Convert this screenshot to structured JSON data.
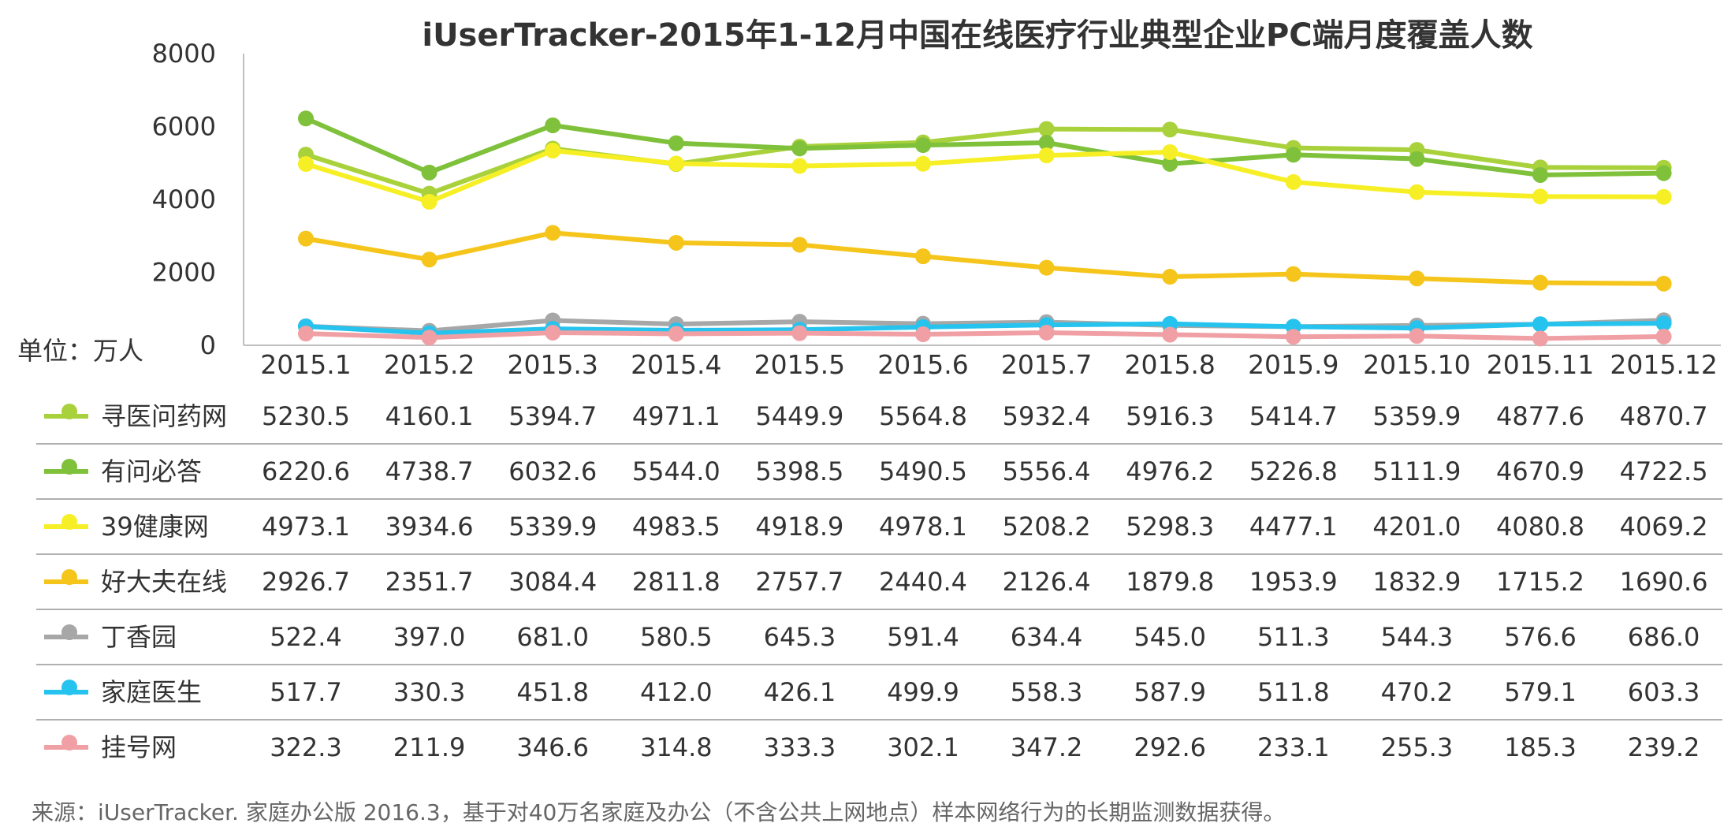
{
  "chart_data": {
    "type": "line",
    "title": "iUserTracker-2015年1-12月中国在线医疗行业典型企业PC端月度覆盖人数",
    "unit_label": "单位：万人",
    "y_ticks": [
      "0",
      "2000",
      "4000",
      "6000",
      "8000"
    ],
    "ylim": [
      0,
      8000
    ],
    "grid": false,
    "legend": "table-left",
    "categories": [
      "2015.1",
      "2015.2",
      "2015.3",
      "2015.4",
      "2015.5",
      "2015.6",
      "2015.7",
      "2015.8",
      "2015.9",
      "2015.10",
      "2015.11",
      "2015.12"
    ],
    "series": [
      {
        "name": "寻医问药网",
        "color": "#a9d13c",
        "values": [
          5230.5,
          4160.1,
          5394.7,
          4971.1,
          5449.9,
          5564.8,
          5932.4,
          5916.3,
          5414.7,
          5359.9,
          4877.6,
          4870.7
        ],
        "labels": [
          "5230.5",
          "4160.1",
          "5394.7",
          "4971.1",
          "5449.9",
          "5564.8",
          "5932.4",
          "5916.3",
          "5414.7",
          "5359.9",
          "4877.6",
          "4870.7"
        ]
      },
      {
        "name": "有问必答",
        "color": "#7fc13a",
        "values": [
          6220.6,
          4738.7,
          6032.6,
          5544.0,
          5398.5,
          5490.5,
          5556.4,
          4976.2,
          5226.8,
          5111.9,
          4670.9,
          4722.5
        ],
        "labels": [
          "6220.6",
          "4738.7",
          "6032.6",
          "5544.0",
          "5398.5",
          "5490.5",
          "5556.4",
          "4976.2",
          "5226.8",
          "5111.9",
          "4670.9",
          "4722.5"
        ]
      },
      {
        "name": "39健康网",
        "color": "#f7ef25",
        "values": [
          4973.1,
          3934.6,
          5339.9,
          4983.5,
          4918.9,
          4978.1,
          5208.2,
          5298.3,
          4477.1,
          4201.0,
          4080.8,
          4069.2
        ],
        "labels": [
          "4973.1",
          "3934.6",
          "5339.9",
          "4983.5",
          "4918.9",
          "4978.1",
          "5208.2",
          "5298.3",
          "4477.1",
          "4201.0",
          "4080.8",
          "4069.2"
        ]
      },
      {
        "name": "好大夫在线",
        "color": "#f5c51c",
        "values": [
          2926.7,
          2351.7,
          3084.4,
          2811.8,
          2757.7,
          2440.4,
          2126.4,
          1879.8,
          1953.9,
          1832.9,
          1715.2,
          1690.6
        ],
        "labels": [
          "2926.7",
          "2351.7",
          "3084.4",
          "2811.8",
          "2757.7",
          "2440.4",
          "2126.4",
          "1879.8",
          "1953.9",
          "1832.9",
          "1715.2",
          "1690.6"
        ]
      },
      {
        "name": "丁香园",
        "color": "#a7a7a7",
        "values": [
          522.4,
          397.0,
          681.0,
          580.5,
          645.3,
          591.4,
          634.4,
          545.0,
          511.3,
          544.3,
          576.6,
          686.0
        ],
        "labels": [
          "522.4",
          "397.0",
          "681.0",
          "580.5",
          "645.3",
          "591.4",
          "634.4",
          "545.0",
          "511.3",
          "544.3",
          "576.6",
          "686.0"
        ]
      },
      {
        "name": "家庭医生",
        "color": "#26c3ee",
        "values": [
          517.7,
          330.3,
          451.8,
          412.0,
          426.1,
          499.9,
          558.3,
          587.9,
          511.8,
          470.2,
          579.1,
          603.3
        ],
        "labels": [
          "517.7",
          "330.3",
          "451.8",
          "412.0",
          "426.1",
          "499.9",
          "558.3",
          "587.9",
          "511.8",
          "470.2",
          "579.1",
          "603.3"
        ]
      },
      {
        "name": "挂号网",
        "color": "#f0a0a4",
        "values": [
          322.3,
          211.9,
          346.6,
          314.8,
          333.3,
          302.1,
          347.2,
          292.6,
          233.1,
          255.3,
          185.3,
          239.2
        ],
        "labels": [
          "322.3",
          "211.9",
          "346.6",
          "314.8",
          "333.3",
          "302.1",
          "347.2",
          "292.6",
          "233.1",
          "255.3",
          "185.3",
          "239.2"
        ]
      }
    ],
    "source": "来源：iUserTracker. 家庭办公版 2016.3，基于对40万名家庭及办公（不含公共上网地点）样本网络行为的长期监测数据获得。"
  }
}
